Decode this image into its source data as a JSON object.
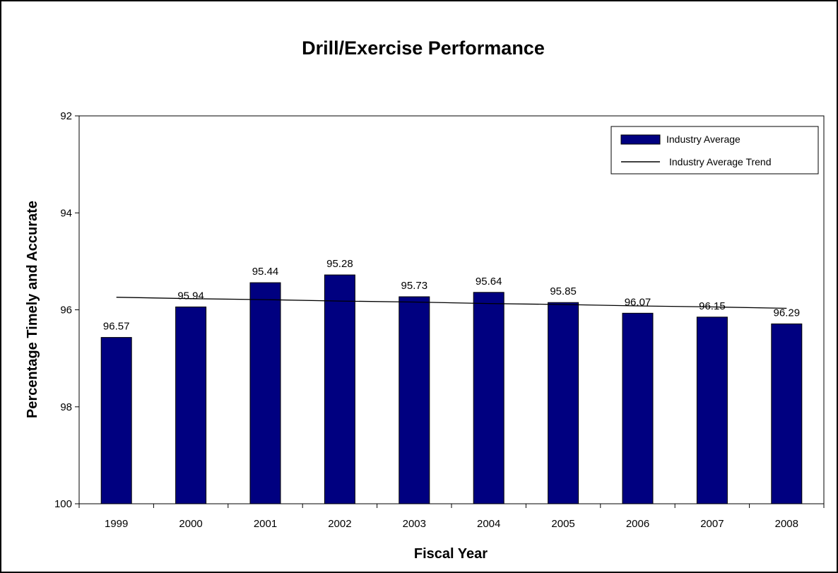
{
  "chart_data": {
    "type": "bar",
    "title": "Drill/Exercise Performance",
    "xlabel": "Fiscal Year",
    "ylabel": "Percentage Timely and Accurate",
    "categories": [
      "1999",
      "2000",
      "2001",
      "2002",
      "2003",
      "2004",
      "2005",
      "2006",
      "2007",
      "2008"
    ],
    "series": [
      {
        "name": "Industry Average",
        "type": "bar",
        "color": "#000080",
        "values": [
          96.57,
          95.94,
          95.44,
          95.28,
          95.73,
          95.64,
          95.85,
          96.07,
          96.15,
          96.29
        ]
      },
      {
        "name": "Industry Average Trend",
        "type": "line",
        "color": "#000000",
        "values": [
          95.74,
          95.77,
          95.79,
          95.82,
          95.84,
          95.87,
          95.89,
          95.92,
          95.94,
          95.97
        ]
      }
    ],
    "y_axis": {
      "min": 92,
      "max": 100,
      "inverted": true,
      "ticks": [
        "92",
        "94",
        "96",
        "98",
        "100"
      ],
      "tick_values": [
        92,
        94,
        96,
        98,
        100
      ]
    },
    "data_labels": [
      "96.57",
      "95.94",
      "95.44",
      "95.28",
      "95.73",
      "95.64",
      "95.85",
      "96.07",
      "96.15",
      "96.29"
    ],
    "legend_position": "top-right",
    "grid": false
  }
}
